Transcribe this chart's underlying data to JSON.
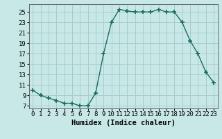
{
  "x": [
    0,
    1,
    2,
    3,
    4,
    5,
    6,
    7,
    8,
    9,
    10,
    11,
    12,
    13,
    14,
    15,
    16,
    17,
    18,
    19,
    20,
    21,
    22,
    23
  ],
  "y": [
    10,
    9,
    8.5,
    8,
    7.5,
    7.5,
    7,
    7,
    9.5,
    17,
    23,
    25.5,
    25.2,
    25,
    25,
    25,
    25.5,
    25,
    25,
    23,
    19.5,
    17,
    13.5,
    11.5
  ],
  "line_color": "#1a6b5e",
  "marker_color": "#1a6b5e",
  "bg_color": "#c8e8e8",
  "grid_color": "#a8cccc",
  "xlabel": "Humidex (Indice chaleur)",
  "xlim": [
    -0.5,
    23.5
  ],
  "ylim": [
    6.5,
    26.5
  ],
  "yticks": [
    7,
    9,
    11,
    13,
    15,
    17,
    19,
    21,
    23,
    25
  ],
  "xticks": [
    0,
    1,
    2,
    3,
    4,
    5,
    6,
    7,
    8,
    9,
    10,
    11,
    12,
    13,
    14,
    15,
    16,
    17,
    18,
    19,
    20,
    21,
    22,
    23
  ],
  "tick_label_size": 6.5,
  "xlabel_size": 7.5,
  "font_family": "DejaVu Sans Mono"
}
